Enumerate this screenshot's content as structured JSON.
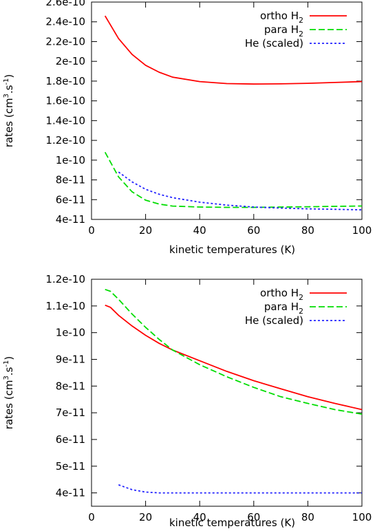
{
  "chart_data": [
    {
      "type": "line",
      "xlabel": "kinetic temperatures (K)",
      "ylabel": {
        "pre": "rates (cm",
        "sup1": "3",
        "mid": ".s",
        "sup2": "-1",
        "post": ")"
      },
      "xlim": [
        0,
        100
      ],
      "ylim": [
        4e-11,
        2.6e-10
      ],
      "x_ticks": [
        0,
        20,
        40,
        60,
        80,
        100
      ],
      "y_ticks": [
        4e-11,
        6e-11,
        8e-11,
        1e-10,
        1.2e-10,
        1.4e-10,
        1.6e-10,
        1.8e-10,
        2e-10,
        2.2e-10,
        2.4e-10,
        2.6e-10
      ],
      "y_tick_labels": [
        "4e-11",
        "6e-11",
        "8e-11",
        "1e-10",
        "1.2e-10",
        "1.4e-10",
        "1.6e-10",
        "1.8e-10",
        "2e-10",
        "2.2e-10",
        "2.4e-10",
        "2.6e-10"
      ],
      "grid": false,
      "legend_position": "top-right",
      "series": [
        {
          "name": {
            "base": "ortho H",
            "sub": "2"
          },
          "color": "#ff0000",
          "dash": "solid",
          "x": [
            5,
            10,
            15,
            20,
            25,
            30,
            40,
            50,
            60,
            70,
            80,
            90,
            100
          ],
          "y": [
            2.46e-10,
            2.23e-10,
            2.07e-10,
            1.96e-10,
            1.89e-10,
            1.84e-10,
            1.795e-10,
            1.775e-10,
            1.77e-10,
            1.772e-10,
            1.778e-10,
            1.786e-10,
            1.795e-10
          ]
        },
        {
          "name": {
            "base": "para H",
            "sub": "2"
          },
          "color": "#00dd00",
          "dash": "dashed",
          "x": [
            5,
            10,
            15,
            20,
            25,
            30,
            40,
            50,
            60,
            70,
            80,
            90,
            100
          ],
          "y": [
            1.08e-10,
            8.3e-11,
            6.8e-11,
            5.95e-11,
            5.55e-11,
            5.35e-11,
            5.25e-11,
            5.22e-11,
            5.22e-11,
            5.25e-11,
            5.28e-11,
            5.32e-11,
            5.36e-11
          ]
        },
        {
          "name": {
            "base": "He (scaled)",
            "sub": ""
          },
          "color": "#2222ff",
          "dash": "dotted",
          "x": [
            10,
            15,
            20,
            25,
            30,
            40,
            50,
            60,
            70,
            80,
            90,
            100
          ],
          "y": [
            8.8e-11,
            7.8e-11,
            7.05e-11,
            6.55e-11,
            6.2e-11,
            5.75e-11,
            5.45e-11,
            5.25e-11,
            5.15e-11,
            5.07e-11,
            5.02e-11,
            4.97e-11
          ]
        }
      ]
    },
    {
      "type": "line",
      "xlabel": "kinetic temperatures (K)",
      "ylabel": {
        "pre": "rates (cm",
        "sup1": "3",
        "mid": ".s",
        "sup2": "-1",
        "post": ")"
      },
      "xlim": [
        0,
        100
      ],
      "ylim": [
        3.5e-11,
        1.2e-10
      ],
      "x_ticks": [
        0,
        20,
        40,
        60,
        80,
        100
      ],
      "y_ticks": [
        4e-11,
        5e-11,
        6e-11,
        7e-11,
        8e-11,
        9e-11,
        1e-10,
        1.1e-10,
        1.2e-10
      ],
      "y_tick_labels": [
        "4e-11",
        "5e-11",
        "6e-11",
        "7e-11",
        "8e-11",
        "9e-11",
        "1e-10",
        "1.1e-10",
        "1.2e-10"
      ],
      "grid": false,
      "legend_position": "top-right",
      "series": [
        {
          "name": {
            "base": "ortho H",
            "sub": "2"
          },
          "color": "#ff0000",
          "dash": "solid",
          "x": [
            5,
            7,
            10,
            15,
            20,
            25,
            30,
            40,
            50,
            60,
            70,
            80,
            90,
            100
          ],
          "y": [
            1.103e-10,
            1.095e-10,
            1.065e-10,
            1.025e-10,
            9.9e-11,
            9.6e-11,
            9.35e-11,
            8.95e-11,
            8.55e-11,
            8.2e-11,
            7.9e-11,
            7.6e-11,
            7.35e-11,
            7.12e-11
          ]
        },
        {
          "name": {
            "base": "para H",
            "sub": "2"
          },
          "color": "#00dd00",
          "dash": "dashed",
          "x": [
            5,
            7,
            10,
            15,
            20,
            25,
            30,
            40,
            50,
            60,
            70,
            80,
            90,
            100
          ],
          "y": [
            1.162e-10,
            1.155e-10,
            1.125e-10,
            1.07e-10,
            1.02e-10,
            9.75e-11,
            9.35e-11,
            8.8e-11,
            8.35e-11,
            7.95e-11,
            7.6e-11,
            7.35e-11,
            7.12e-11,
            6.95e-11
          ]
        },
        {
          "name": {
            "base": "He (scaled)",
            "sub": ""
          },
          "color": "#2222ff",
          "dash": "dotted",
          "x": [
            10,
            15,
            20,
            25,
            30,
            40,
            50,
            60,
            70,
            80,
            90,
            100
          ],
          "y": [
            4.3e-11,
            4.12e-11,
            4.03e-11,
            4e-11,
            4e-11,
            4e-11,
            4e-11,
            4e-11,
            4e-11,
            4e-11,
            4e-11,
            4e-11
          ]
        }
      ]
    }
  ]
}
